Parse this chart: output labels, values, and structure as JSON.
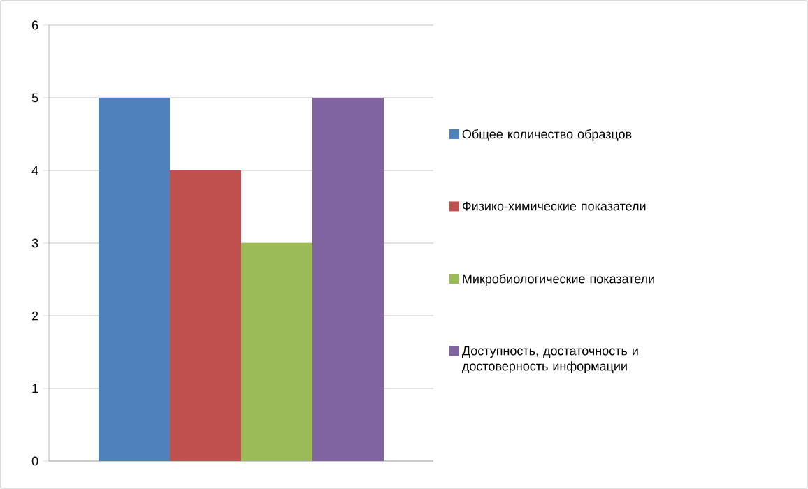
{
  "chart_data": {
    "type": "bar",
    "categories": [
      null
    ],
    "series": [
      {
        "name": "Общее количество образцов",
        "color": "#4f81bd",
        "values": [
          5
        ]
      },
      {
        "name": "Физико-химические показатели",
        "color": "#c0504d",
        "values": [
          4
        ]
      },
      {
        "name": "Микробиологические показатели",
        "color": "#9bbb59",
        "values": [
          3
        ]
      },
      {
        "name": "Доступность, достаточность и достоверность информации",
        "color": "#8064a2",
        "values": [
          5
        ]
      }
    ],
    "ylim": [
      0,
      6
    ],
    "yticks": [
      0,
      1,
      2,
      3,
      4,
      5,
      6
    ],
    "grid": "y",
    "legend": "right"
  }
}
